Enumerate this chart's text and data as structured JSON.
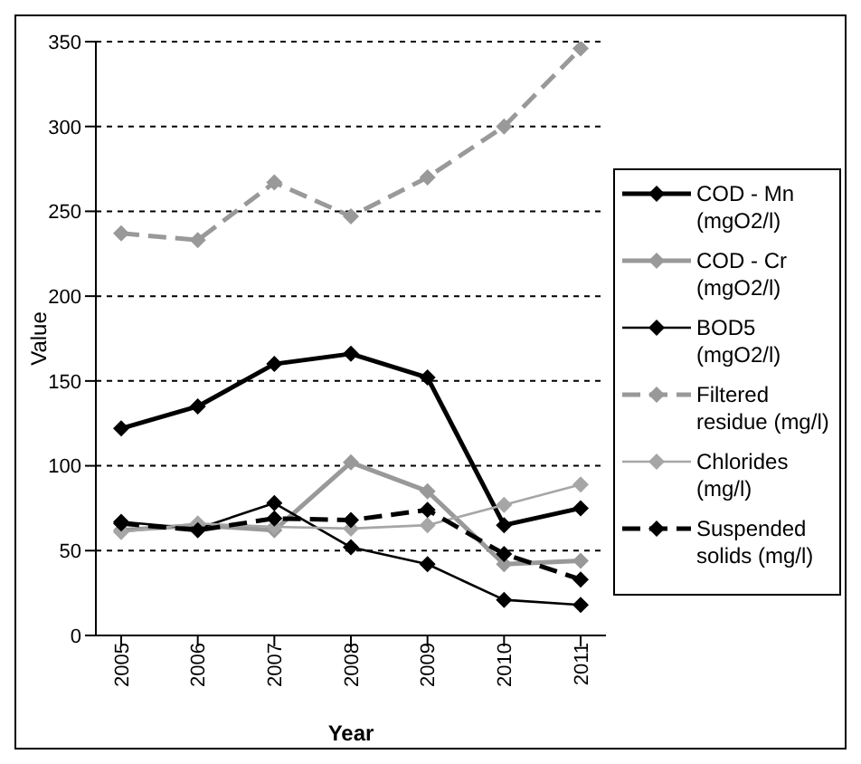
{
  "chart_data": {
    "type": "line",
    "xlabel": "Year",
    "ylabel": "Value",
    "categories": [
      "2005",
      "2006",
      "2007",
      "2008",
      "2009",
      "2010",
      "2011"
    ],
    "series": [
      {
        "name": "COD - Mn (mgO2/l)",
        "color": "#000000",
        "line_style": "solid",
        "values": [
          122,
          135,
          160,
          166,
          152,
          65,
          75
        ]
      },
      {
        "name": "COD - Cr (mgO2/l)",
        "color": "#999999",
        "line_style": "solid",
        "values": [
          62,
          65,
          62,
          102,
          85,
          42,
          44
        ]
      },
      {
        "name": "BOD5 (mgO2/l)",
        "color": "#000000",
        "line_style": "solid",
        "values": [
          67,
          63,
          78,
          52,
          42,
          21,
          18
        ]
      },
      {
        "name": "Filtered residue (mg/l)",
        "color": "#999999",
        "line_style": "dashed",
        "values": [
          237,
          233,
          267,
          247,
          270,
          300,
          346
        ]
      },
      {
        "name": "Chlorides (mg/l)",
        "color": "#a6a6a6",
        "line_style": "solid",
        "values": [
          61,
          66,
          64,
          63,
          65,
          77,
          89
        ]
      },
      {
        "name": "Suspended solids (mg/l)",
        "color": "#000000",
        "line_style": "dashed",
        "values": [
          66,
          62,
          69,
          68,
          74,
          48,
          33
        ]
      }
    ],
    "ylim": [
      0,
      350
    ],
    "yticks": [
      0,
      50,
      100,
      150,
      200,
      250,
      300,
      350
    ],
    "grid": "y",
    "legend": "right",
    "marker": "diamond"
  }
}
